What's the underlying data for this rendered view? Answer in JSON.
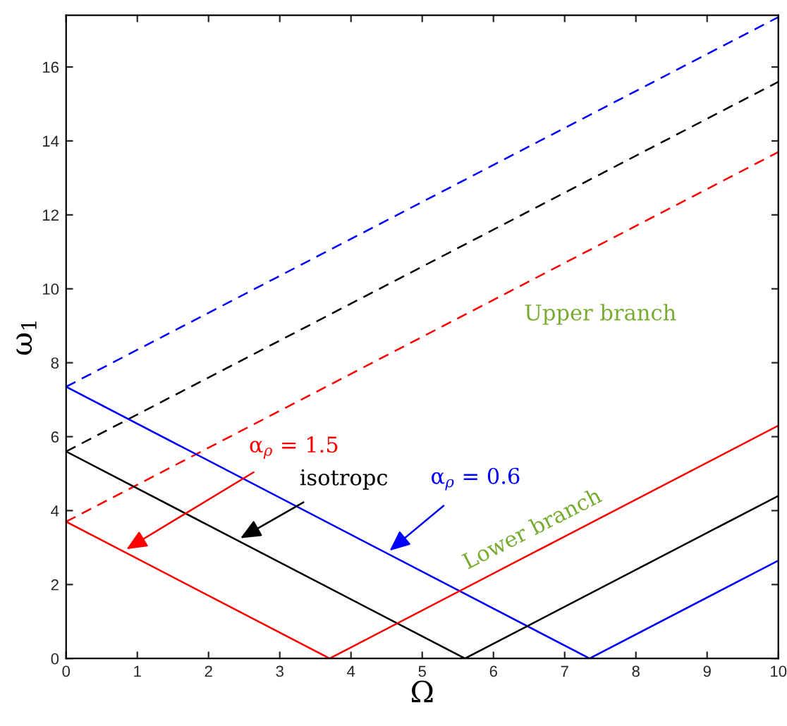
{
  "chart_data": {
    "type": "line",
    "xlabel": "Ω",
    "ylabel": "ω$_{1}$",
    "xlim": [
      0,
      10
    ],
    "xticks": [
      0,
      1,
      2,
      3,
      4,
      5,
      6,
      7,
      8,
      9,
      10
    ],
    "ylim": [
      0,
      17.4
    ],
    "yticks": [
      0,
      2,
      4,
      6,
      8,
      10,
      12,
      14,
      16
    ],
    "grid": false,
    "legend": false,
    "series": [
      {
        "color": "#0000ff",
        "line_style": "dashed",
        "x": [
          0,
          10
        ],
        "values": [
          7.35,
          17.35
        ]
      },
      {
        "color": "#000000",
        "line_style": "dashed",
        "x": [
          0,
          10
        ],
        "values": [
          5.6,
          15.6
        ]
      },
      {
        "color": "#ff0000",
        "line_style": "dashed",
        "x": [
          0,
          10
        ],
        "values": [
          3.7,
          13.7
        ]
      },
      {
        "color": "#0000ff",
        "line_style": "solid",
        "x": [
          0,
          7.35,
          10
        ],
        "values": [
          7.35,
          0,
          2.65
        ]
      },
      {
        "color": "#000000",
        "line_style": "solid",
        "x": [
          0,
          5.6,
          10
        ],
        "values": [
          5.6,
          0,
          4.4
        ]
      },
      {
        "color": "#ff0000",
        "line_style": "solid",
        "x": [
          0,
          3.7,
          10
        ],
        "values": [
          3.7,
          0,
          6.3
        ]
      }
    ],
    "annotations": [
      {
        "text": "α$_{ρ}$ = 1.5",
        "x": 0.8,
        "y": 2.9
      },
      {
        "text": "isotropc",
        "x": 2.4,
        "y": 3.2
      },
      {
        "text": "α$_{ρ}$ = 0.6",
        "x": 4.5,
        "y": 2.85
      },
      "Upper branch",
      "Lower branch"
    ]
  }
}
